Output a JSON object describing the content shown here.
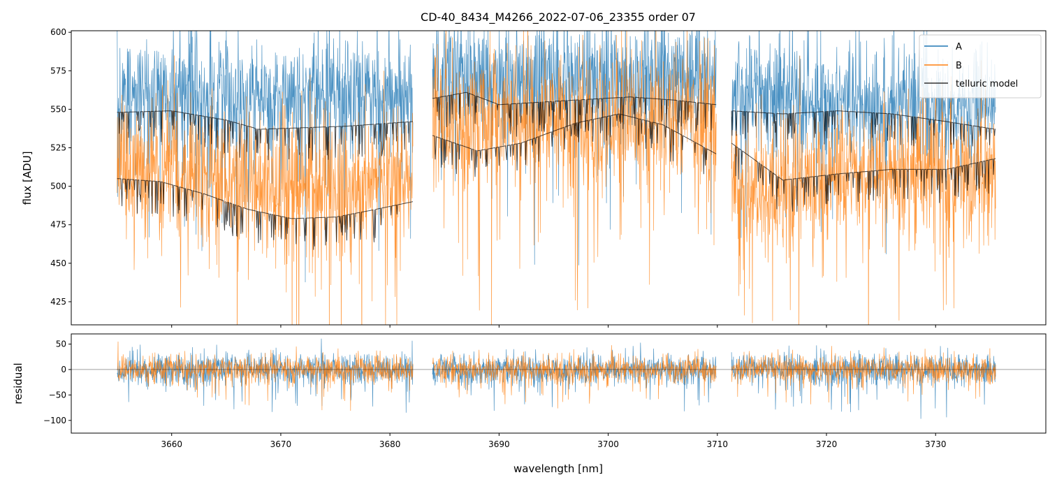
{
  "chart_data": [
    {
      "type": "line",
      "title": "CD-40_8434_M4266_2022-07-06_23355  order 07",
      "xlabel": "",
      "ylabel": "flux [ADU]",
      "xlim": [
        3650.8,
        3740.1
      ],
      "ylim": [
        410,
        601
      ],
      "yticks": [
        425,
        450,
        475,
        500,
        525,
        550,
        575,
        600
      ],
      "xticks": [
        3660,
        3670,
        3680,
        3690,
        3700,
        3710,
        3720,
        3730
      ],
      "grid": false,
      "legend": {
        "placement": "top-right",
        "entries": [
          "A",
          "B",
          "telluric model"
        ]
      },
      "segments": [
        {
          "x_range": [
            3655.0,
            3682.1
          ]
        },
        {
          "x_range": [
            3683.9,
            3709.9
          ]
        },
        {
          "x_range": [
            3711.3,
            3735.5
          ]
        }
      ],
      "series": [
        {
          "name": "A",
          "color": "#1f77b4",
          "description": "noisy spectrum",
          "baseline_points": [
            [
              3655.0,
              562
            ],
            [
              3668.0,
              556
            ],
            [
              3682.1,
              560
            ],
            [
              3683.9,
              572
            ],
            [
              3697.0,
              568
            ],
            [
              3709.9,
              570
            ],
            [
              3711.3,
              560
            ],
            [
              3722.0,
              556
            ],
            [
              3735.5,
              550
            ]
          ],
          "noise_amplitude": 35
        },
        {
          "name": "B",
          "color": "#ff7f0e",
          "description": "noisy spectrum",
          "baseline_points": [
            [
              3655.0,
              515
            ],
            [
              3668.0,
              500
            ],
            [
              3682.1,
              505
            ],
            [
              3683.9,
              545
            ],
            [
              3697.0,
              540
            ],
            [
              3709.9,
              545
            ],
            [
              3711.3,
              500
            ],
            [
              3722.0,
              508
            ],
            [
              3735.5,
              510
            ]
          ],
          "noise_amplitude": 38
        },
        {
          "name": "telluric model",
          "color": "#000000",
          "lines": [
            {
              "segment": 0,
              "points": [
                [
                  3655.0,
                  548
                ],
                [
                  3660.0,
                  549
                ],
                [
                  3665.0,
                  543
                ],
                [
                  3668.0,
                  537
                ],
                [
                  3672.0,
                  538
                ],
                [
                  3676.0,
                  539
                ],
                [
                  3680.0,
                  541
                ],
                [
                  3682.1,
                  542
                ]
              ]
            },
            {
              "segment": 0,
              "points": [
                [
                  3655.0,
                  505
                ],
                [
                  3659.0,
                  503
                ],
                [
                  3663.0,
                  495
                ],
                [
                  3667.0,
                  485
                ],
                [
                  3671.0,
                  479
                ],
                [
                  3675.0,
                  480
                ],
                [
                  3678.0,
                  484
                ],
                [
                  3682.1,
                  490
                ]
              ]
            },
            {
              "segment": 1,
              "points": [
                [
                  3683.9,
                  557
                ],
                [
                  3687.0,
                  561
                ],
                [
                  3690.0,
                  553
                ],
                [
                  3697.0,
                  556
                ],
                [
                  3702.0,
                  558
                ],
                [
                  3706.0,
                  556
                ],
                [
                  3709.9,
                  553
                ]
              ]
            },
            {
              "segment": 1,
              "points": [
                [
                  3683.9,
                  533
                ],
                [
                  3688.0,
                  523
                ],
                [
                  3692.0,
                  528
                ],
                [
                  3697.0,
                  541
                ],
                [
                  3701.0,
                  547
                ],
                [
                  3705.0,
                  540
                ],
                [
                  3709.9,
                  521
                ]
              ]
            },
            {
              "segment": 2,
              "points": [
                [
                  3711.3,
                  549
                ],
                [
                  3716.0,
                  547
                ],
                [
                  3721.0,
                  549
                ],
                [
                  3726.0,
                  547
                ],
                [
                  3731.0,
                  542
                ],
                [
                  3735.5,
                  537
                ]
              ]
            },
            {
              "segment": 2,
              "points": [
                [
                  3711.3,
                  528
                ],
                [
                  3716.0,
                  504
                ],
                [
                  3721.0,
                  508
                ],
                [
                  3726.0,
                  511
                ],
                [
                  3731.0,
                  511
                ],
                [
                  3735.5,
                  518
                ]
              ]
            }
          ]
        }
      ]
    },
    {
      "type": "line",
      "title": "",
      "xlabel": "wavelength [nm]",
      "ylabel": "residual",
      "xlim": [
        3650.8,
        3740.1
      ],
      "ylim": [
        -125,
        70
      ],
      "yticks": [
        -100,
        -50,
        0,
        50
      ],
      "ytick_labels": [
        "−100",
        "−50",
        "0",
        "50"
      ],
      "xticks": [
        3660,
        3670,
        3680,
        3690,
        3700,
        3710,
        3720,
        3730
      ],
      "grid": false,
      "zero_line": true,
      "series": [
        {
          "name": "A",
          "color": "#1f77b4",
          "description": "noisy residual around 0",
          "noise_amplitude": 28
        },
        {
          "name": "B",
          "color": "#ff7f0e",
          "description": "noisy residual around 0",
          "noise_amplitude": 24
        }
      ]
    }
  ],
  "colors": {
    "A": "#1f77b4",
    "B": "#ff7f0e",
    "telluric": "#000000"
  }
}
